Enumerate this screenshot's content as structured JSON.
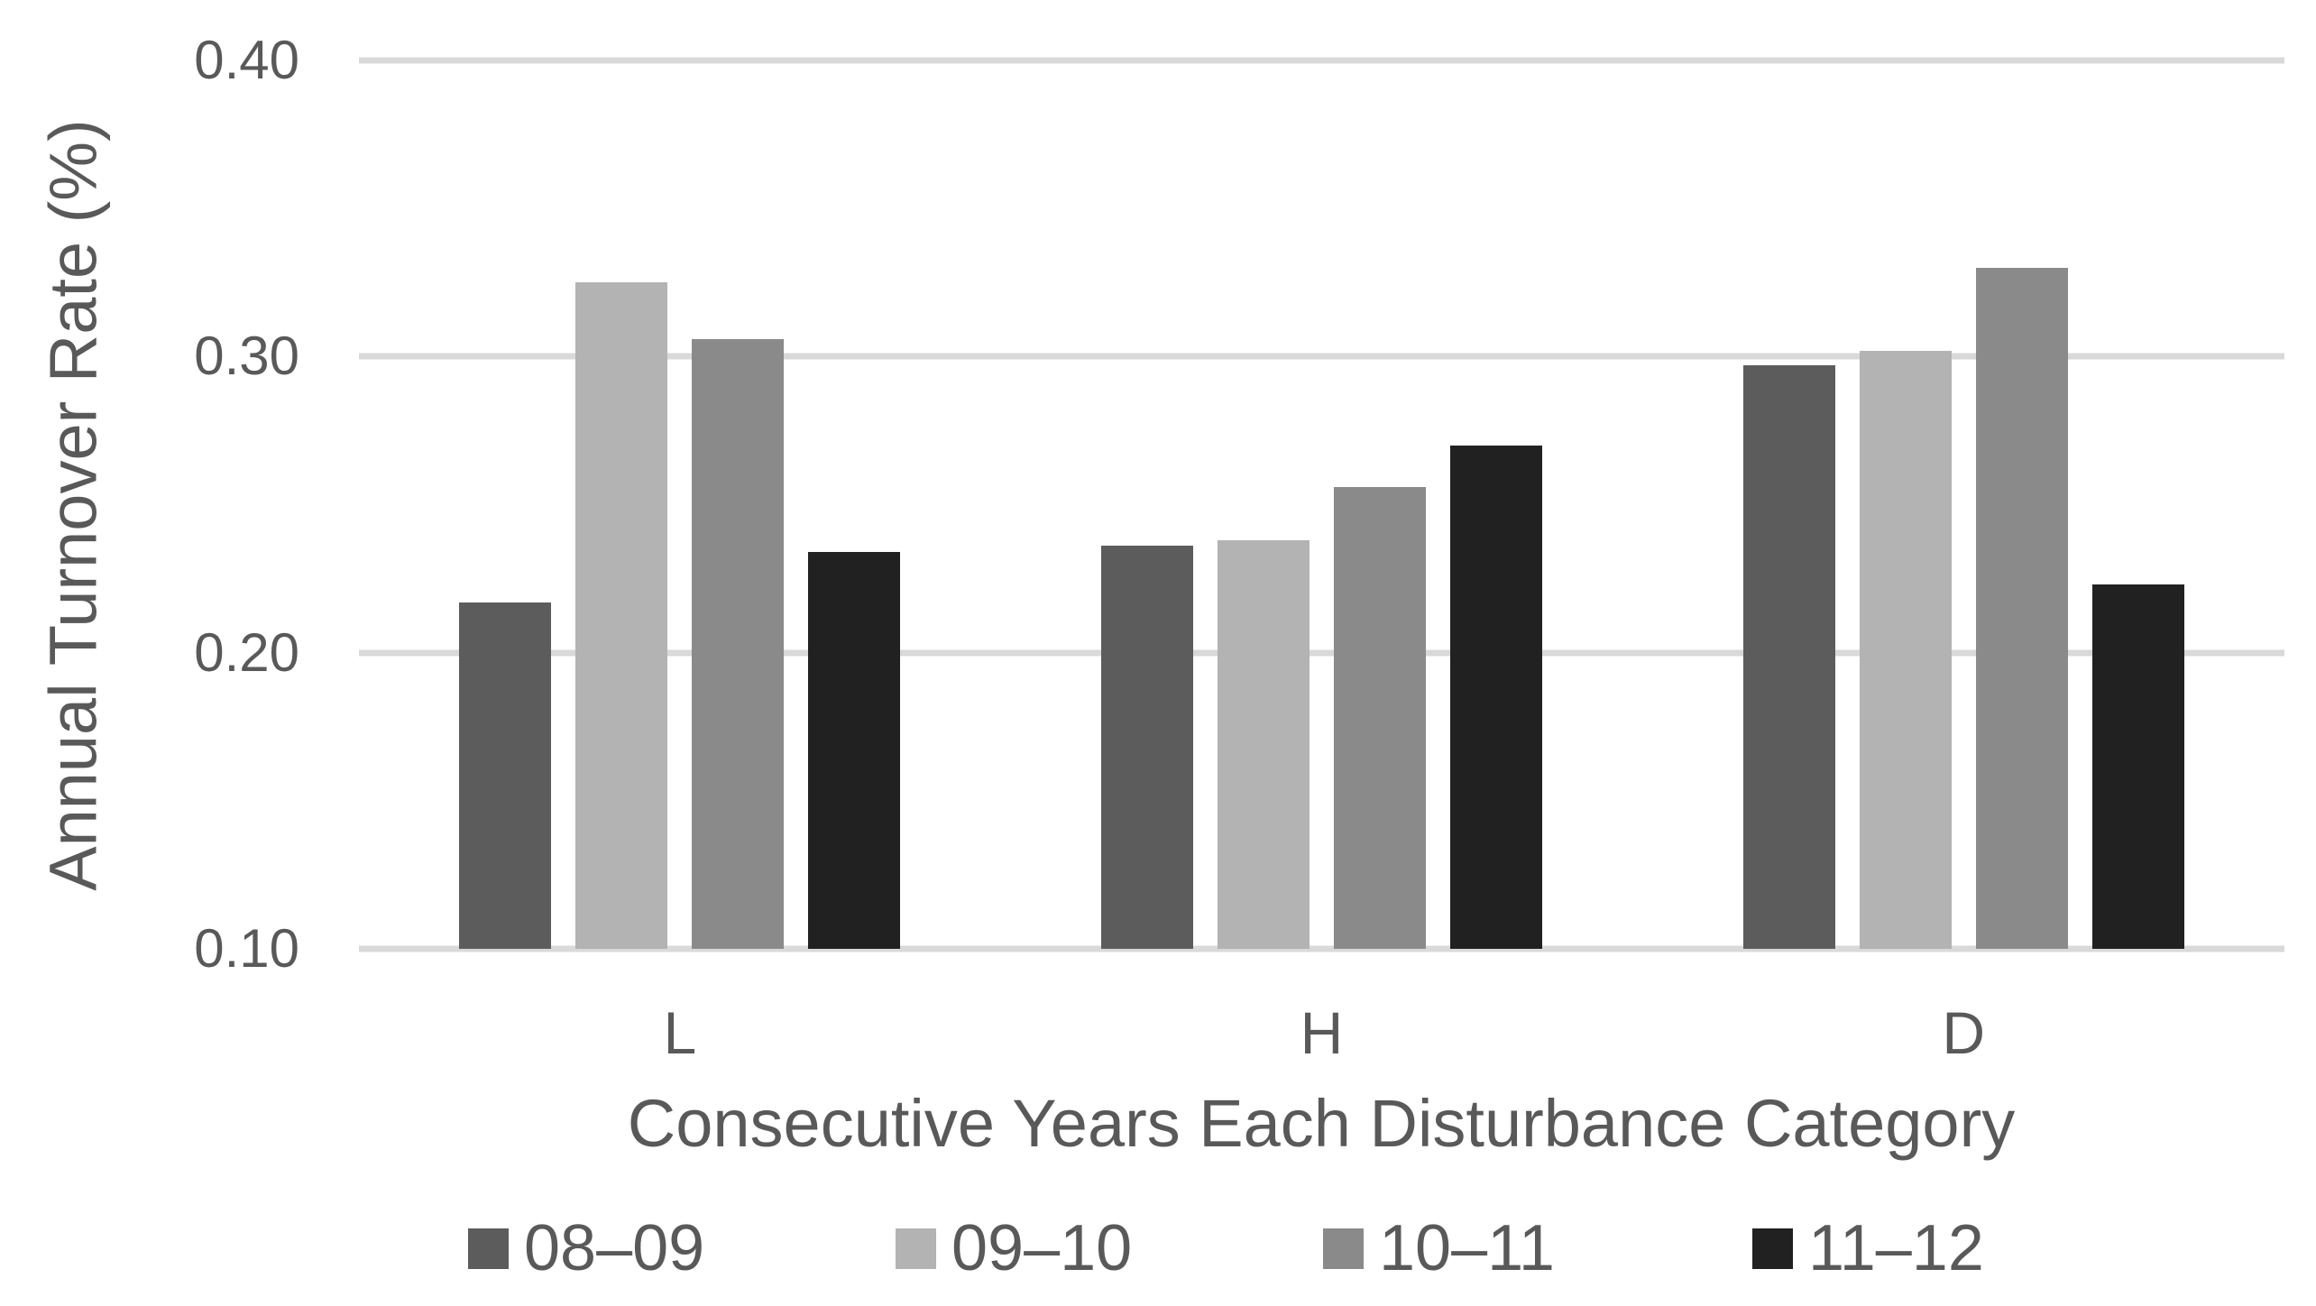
{
  "chart_data": {
    "type": "bar",
    "title": "",
    "xlabel": "Consecutive Years Each Disturbance Category",
    "ylabel": "Annual Turnover Rate (%)",
    "categories": [
      "L",
      "H",
      "D"
    ],
    "series": [
      {
        "name": "08–09",
        "color": "#5C5C5C",
        "values": [
          0.217,
          0.236,
          0.297
        ]
      },
      {
        "name": "09–10",
        "color": "#B3B3B3",
        "values": [
          0.325,
          0.238,
          0.302
        ]
      },
      {
        "name": "10–11",
        "color": "#8A8A8A",
        "values": [
          0.306,
          0.256,
          0.33
        ]
      },
      {
        "name": "11–12",
        "color": "#212121",
        "values": [
          0.234,
          0.27,
          0.223
        ]
      }
    ],
    "ylim": [
      0.1,
      0.4
    ],
    "yticks": [
      {
        "value": 0.4,
        "label": "0.40"
      },
      {
        "value": 0.3,
        "label": "0.30"
      },
      {
        "value": 0.2,
        "label": "0.20"
      },
      {
        "value": 0.1,
        "label": "0.10"
      }
    ],
    "grid": "horizontal",
    "gridline_color": "#D9D9D9",
    "text_color": "#595959",
    "legend_position": "bottom"
  }
}
